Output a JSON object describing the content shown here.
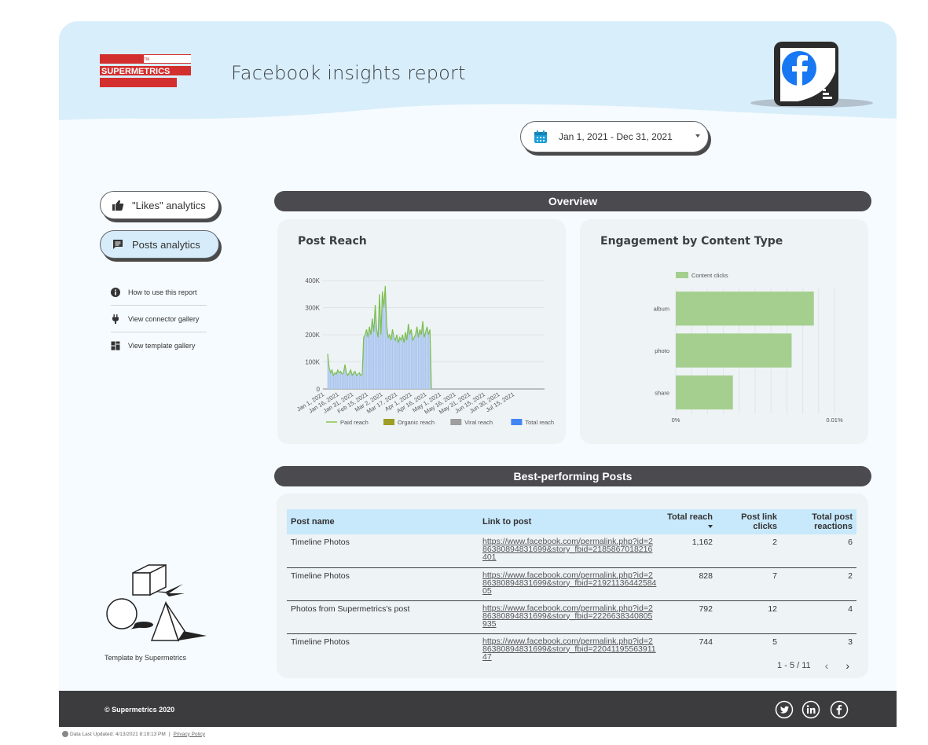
{
  "header": {
    "logo_text": "SUPERMETRICS",
    "logo_mark": "TM",
    "title": "Facebook insights report"
  },
  "date_range": {
    "value": "Jan 1, 2021 - Dec 31, 2021"
  },
  "nav": {
    "likes_label": "\"Likes\" analytics",
    "posts_label": "Posts analytics"
  },
  "side_links": [
    {
      "label": "How to use this report",
      "icon": "info-icon"
    },
    {
      "label": "View connector gallery",
      "icon": "plug-icon"
    },
    {
      "label": "View template gallery",
      "icon": "grid-icon"
    }
  ],
  "template_by": "Template by Supermetrics",
  "sections": {
    "overview": "Overview",
    "best_posts": "Best-performing Posts"
  },
  "post_reach": {
    "title": "Post Reach",
    "chart_data": {
      "type": "area",
      "y_ticks": [
        "400K",
        "300K",
        "200K",
        "100K",
        "0"
      ],
      "ylim": [
        0,
        400000
      ],
      "x_ticks": [
        "Jan 1, 2021",
        "Jan 16, 2021",
        "Jan 31, 2021",
        "Feb 15, 2021",
        "Mar 2, 2021",
        "Mar 17, 2021",
        "Apr 1, 2021",
        "Apr 16, 2021",
        "May 1, 2021",
        "May 16, 2021",
        "May 31, 2021",
        "Jun 15, 2021",
        "Jun 30, 2021",
        "Jul 15, 2021"
      ],
      "series_legend": [
        {
          "name": "Paid reach",
          "color": "#8bc34a"
        },
        {
          "name": "Organic reach",
          "color": "#9e9d24"
        },
        {
          "name": "Viral reach",
          "color": "#9e9e9e"
        },
        {
          "name": "Total reach",
          "color": "#4285f4"
        }
      ],
      "values": [
        130000,
        80000,
        60000,
        70000,
        50000,
        60000,
        55000,
        70000,
        60000,
        65000,
        55000,
        60000,
        90000,
        60000,
        50000,
        60000,
        70000,
        50000,
        60000,
        65000,
        50000,
        55000,
        60000,
        50000,
        55000,
        190000,
        200000,
        220000,
        190000,
        230000,
        200000,
        260000,
        210000,
        310000,
        220000,
        190000,
        350000,
        200000,
        360000,
        300000,
        380000,
        230000,
        190000,
        200000,
        180000,
        220000,
        190000,
        180000,
        200000,
        170000,
        190000,
        180000,
        200000,
        170000,
        210000,
        180000,
        240000,
        200000,
        220000,
        180000,
        190000,
        200000,
        230000,
        190000,
        220000,
        200000,
        250000,
        190000,
        210000,
        230000,
        200000,
        220000,
        0
      ]
    }
  },
  "engagement": {
    "title": "Engagement by Content Type",
    "chart_data": {
      "type": "bar",
      "legend": "Content clicks",
      "categories": [
        "album",
        "photo",
        "share"
      ],
      "values": [
        0.0087,
        0.0073,
        0.0036
      ],
      "x_ticks": [
        "0%",
        "0.01%"
      ],
      "xlim": [
        0,
        0.01
      ],
      "color": "#a5cf8f"
    }
  },
  "table": {
    "headers": {
      "post_name": "Post name",
      "link": "Link to post",
      "reach": "Total reach",
      "clicks_1": "Post link",
      "clicks_2": "clicks",
      "reactions_1": "Total post",
      "reactions_2": "reactions"
    },
    "rows": [
      {
        "name": "Timeline Photos",
        "link": "https://www.facebook.com/permalink.php?id=286380894831699&story_fbid=2185867018216401",
        "reach": "1,162",
        "clicks": "2",
        "reactions": "6"
      },
      {
        "name": "Timeline Photos",
        "link": "https://www.facebook.com/permalink.php?id=286380894831699&story_fbid=2192113644258405",
        "reach": "828",
        "clicks": "7",
        "reactions": "2"
      },
      {
        "name": "Photos from Supermetrics's post",
        "link": "https://www.facebook.com/permalink.php?id=286380894831699&story_fbid=2226638340805935",
        "reach": "792",
        "clicks": "12",
        "reactions": "4"
      },
      {
        "name": "Timeline Photos",
        "link": "https://www.facebook.com/permalink.php?id=286380894831699&story_fbid=2204119556391147",
        "reach": "744",
        "clicks": "5",
        "reactions": "3"
      }
    ],
    "pager": "1 - 5 / 11"
  },
  "footer": {
    "copyright": "© Supermetrics 2020"
  },
  "last_updated": {
    "text": "Data Last Updated: 4/13/2021 8:19:13 PM",
    "privacy": "Privacy Policy"
  },
  "colors": {
    "accent_dark": "#4a4a4f",
    "light_blue": "#d7ecfb",
    "table_header": "#c8e8fb",
    "brand_red": "#d32f2f"
  }
}
